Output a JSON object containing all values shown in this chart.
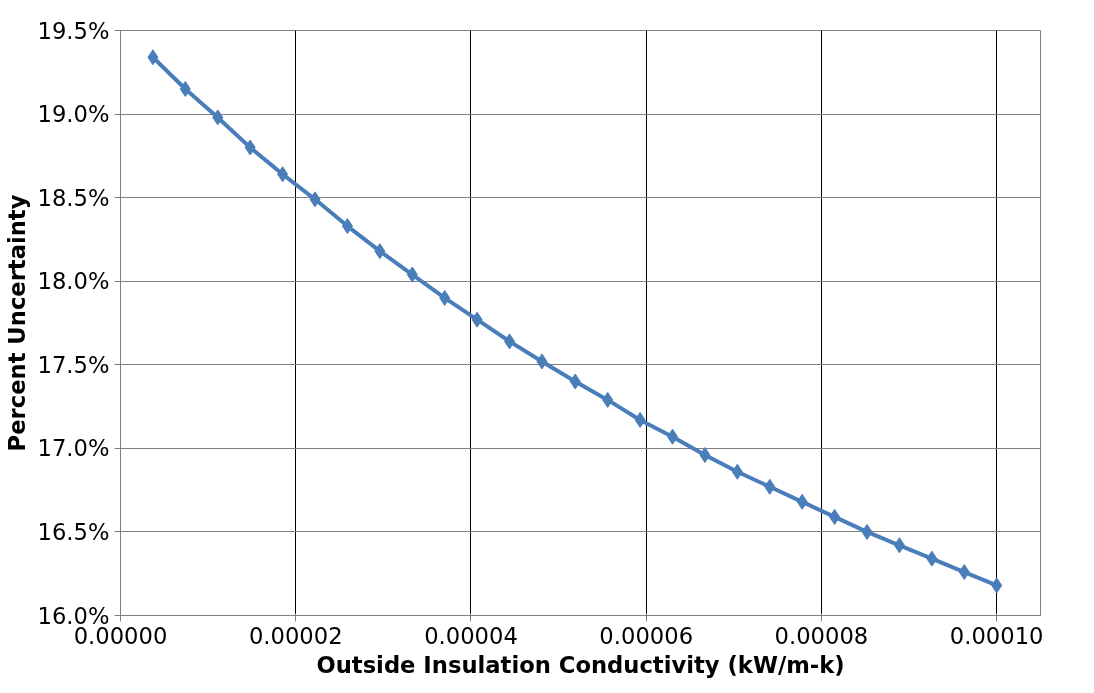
{
  "chart_data": {
    "type": "line",
    "xlabel": "Outside Insulation Conductivity (kW/m-k)",
    "ylabel": "Percent Uncertainty",
    "x": [
      3.7e-06,
      7.4e-06,
      1.11e-05,
      1.48e-05,
      1.85e-05,
      2.22e-05,
      2.59e-05,
      2.96e-05,
      3.33e-05,
      3.7e-05,
      4.07e-05,
      4.44e-05,
      4.81e-05,
      5.19e-05,
      5.56e-05,
      5.93e-05,
      6.3e-05,
      6.67e-05,
      7.04e-05,
      7.41e-05,
      7.78e-05,
      8.15e-05,
      8.52e-05,
      8.89e-05,
      9.26e-05,
      9.63e-05,
      0.0001
    ],
    "series": [
      {
        "color": "#4a7ebb",
        "values": [
          19.34,
          19.15,
          18.98,
          18.8,
          18.64,
          18.49,
          18.33,
          18.18,
          18.04,
          17.9,
          17.77,
          17.64,
          17.52,
          17.4,
          17.29,
          17.17,
          17.07,
          16.96,
          16.86,
          16.77,
          16.68,
          16.59,
          16.5,
          16.42,
          16.34,
          16.26,
          16.18
        ]
      }
    ],
    "xlim": [
      0,
      0.000105
    ],
    "xticks": [
      {
        "value": 0,
        "label": "0.00000"
      },
      {
        "value": 2e-05,
        "label": "0.00002"
      },
      {
        "value": 4e-05,
        "label": "0.00004"
      },
      {
        "value": 6e-05,
        "label": "0.00006"
      },
      {
        "value": 8e-05,
        "label": "0.00008"
      },
      {
        "value": 0.0001,
        "label": "0.00010"
      }
    ],
    "ylim": [
      16.0,
      19.5
    ],
    "yticks": [
      {
        "value": 16.0,
        "label": "16.0%"
      },
      {
        "value": 16.5,
        "label": "16.5%"
      },
      {
        "value": 17.0,
        "label": "17.0%"
      },
      {
        "value": 17.5,
        "label": "17.5%"
      },
      {
        "value": 18.0,
        "label": "18.0%"
      },
      {
        "value": 18.5,
        "label": "18.5%"
      },
      {
        "value": 19.0,
        "label": "19.0%"
      },
      {
        "value": 19.5,
        "label": "19.5%"
      }
    ],
    "grid": true,
    "marker": "diamond",
    "line_style": "solid"
  }
}
